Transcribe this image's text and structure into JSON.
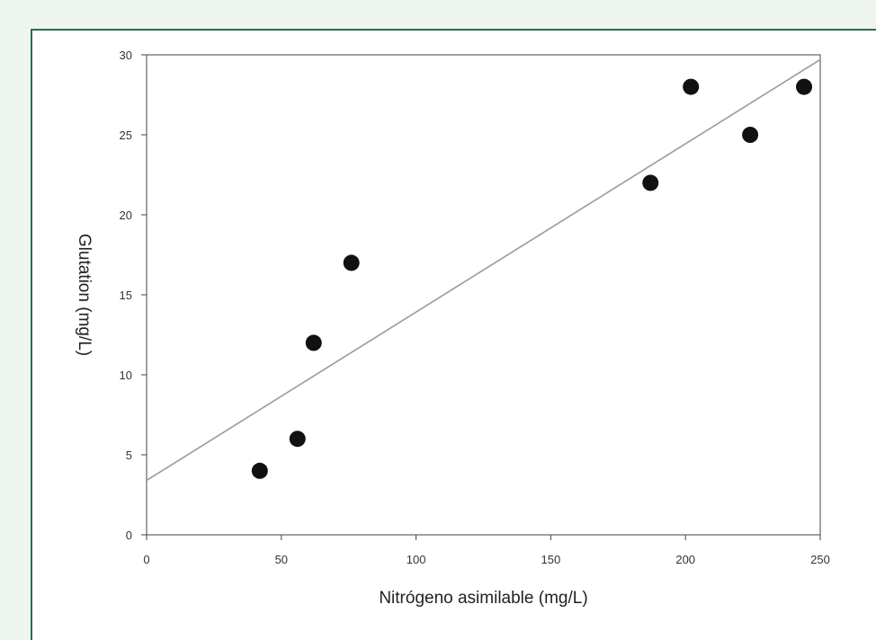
{
  "chart_data": {
    "type": "scatter",
    "title": "",
    "xlabel": "Nitrógeno asimilable (mg/L)",
    "ylabel": "Glutation (mg/L)",
    "xlim": [
      0,
      250
    ],
    "ylim": [
      0,
      30
    ],
    "x_ticks": [
      0,
      50,
      100,
      150,
      200,
      250
    ],
    "y_ticks": [
      0,
      5,
      10,
      15,
      20,
      25,
      30
    ],
    "x_tick_labels": [
      "0",
      "50",
      "100",
      "150",
      "200",
      "250"
    ],
    "y_tick_labels": [
      "0",
      "5",
      "10",
      "15",
      "20",
      "25",
      "30"
    ],
    "grid": false,
    "legend": "none",
    "marker_color": "#111111",
    "line_color": "#9a9a9a",
    "series": [
      {
        "points": [
          {
            "x": 42,
            "y": 4
          },
          {
            "x": 56,
            "y": 6
          },
          {
            "x": 62,
            "y": 12
          },
          {
            "x": 76,
            "y": 17
          },
          {
            "x": 187,
            "y": 22
          },
          {
            "x": 202,
            "y": 28
          },
          {
            "x": 224,
            "y": 25
          },
          {
            "x": 244,
            "y": 28
          }
        ]
      }
    ],
    "trendline": {
      "type": "linear",
      "start": {
        "x": 0,
        "y": 3.4
      },
      "end": {
        "x": 250,
        "y": 29.7
      }
    }
  }
}
